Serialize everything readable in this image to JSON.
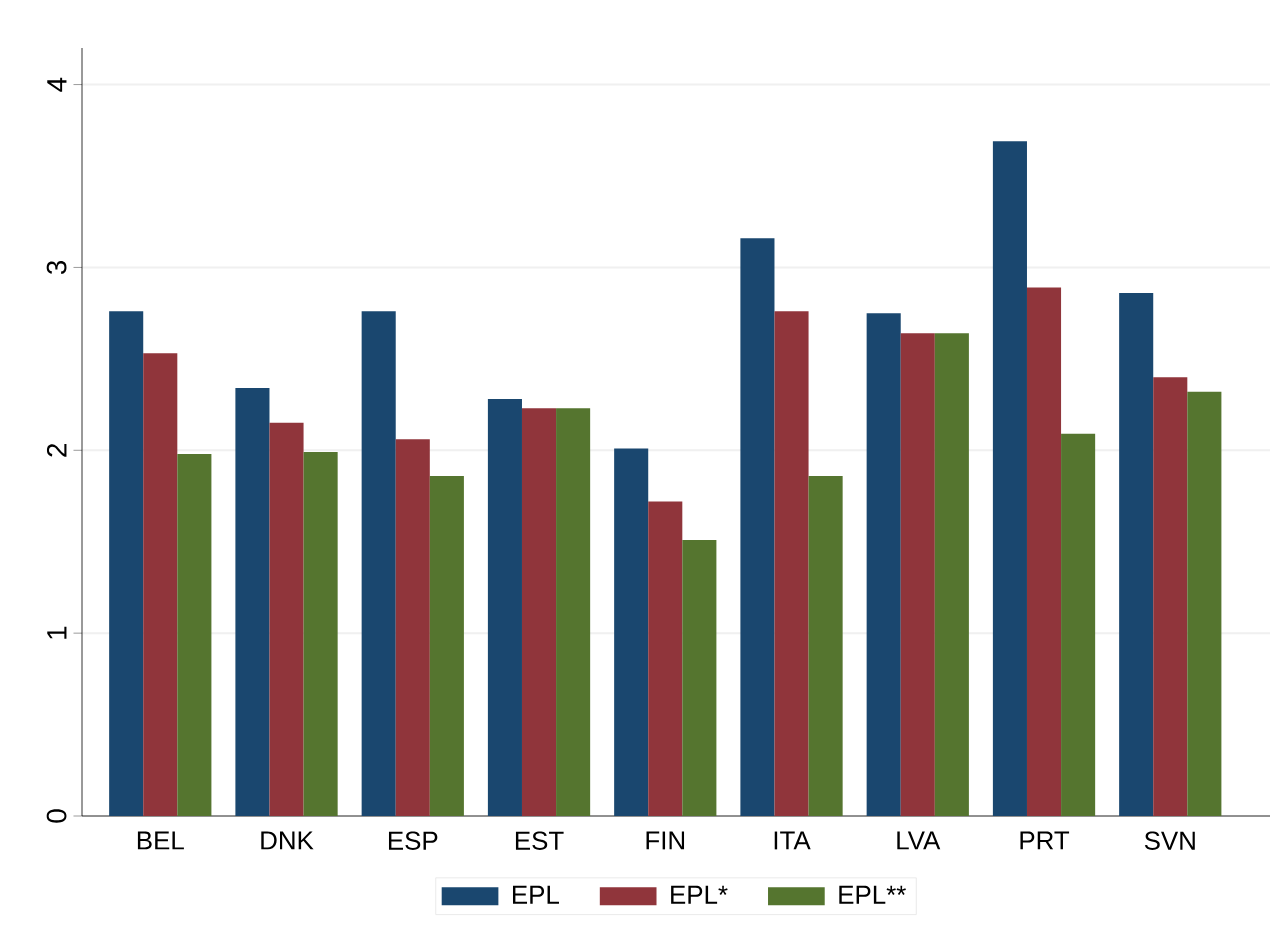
{
  "chart_data": {
    "type": "bar",
    "categories": [
      "BEL",
      "DNK",
      "ESP",
      "EST",
      "FIN",
      "ITA",
      "LVA",
      "PRT",
      "SVN"
    ],
    "series": [
      {
        "name": "EPL",
        "color": "#1a476f",
        "values": [
          2.76,
          2.34,
          2.76,
          2.28,
          2.01,
          3.16,
          2.75,
          3.69,
          2.86
        ]
      },
      {
        "name": "EPL*",
        "color": "#90353b",
        "values": [
          2.53,
          2.15,
          2.06,
          2.23,
          1.72,
          2.76,
          2.64,
          2.89,
          2.4
        ]
      },
      {
        "name": "EPL**",
        "color": "#55752f",
        "values": [
          1.98,
          1.99,
          1.86,
          2.23,
          1.51,
          1.86,
          2.64,
          2.09,
          2.32
        ]
      }
    ],
    "ylim": [
      0,
      4.2
    ],
    "yticks": [
      0,
      1,
      2,
      3,
      4
    ],
    "grid": "y",
    "legend": "bottom"
  }
}
